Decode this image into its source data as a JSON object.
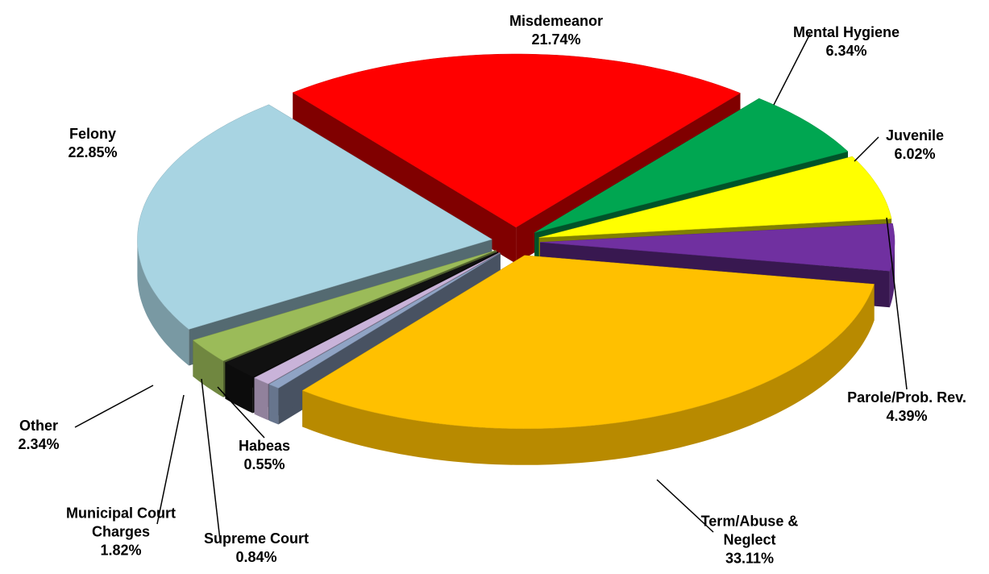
{
  "chart_data": {
    "type": "pie3d",
    "categories": [
      "Misdemeanor",
      "Mental Hygiene",
      "Juvenile",
      "Parole/Prob. Rev.",
      "Term/Abuse & Neglect",
      "Habeas",
      "Supreme Court",
      "Municipal Court Charges",
      "Other",
      "Felony"
    ],
    "values": [
      21.74,
      6.34,
      6.02,
      4.39,
      33.11,
      0.55,
      0.84,
      1.82,
      2.34,
      22.85
    ],
    "value_labels": [
      "21.74%",
      "6.34%",
      "6.02%",
      "4.39%",
      "33.11%",
      "0.55%",
      "0.84%",
      "1.82%",
      "2.34%",
      "22.85%"
    ],
    "colors": [
      "#ff0000",
      "#00a651",
      "#ffff00",
      "#7030a0",
      "#ffc000",
      "#8fa3c4",
      "#c9b3d9",
      "#111111",
      "#9bbb59",
      "#a8d4e2"
    ]
  }
}
